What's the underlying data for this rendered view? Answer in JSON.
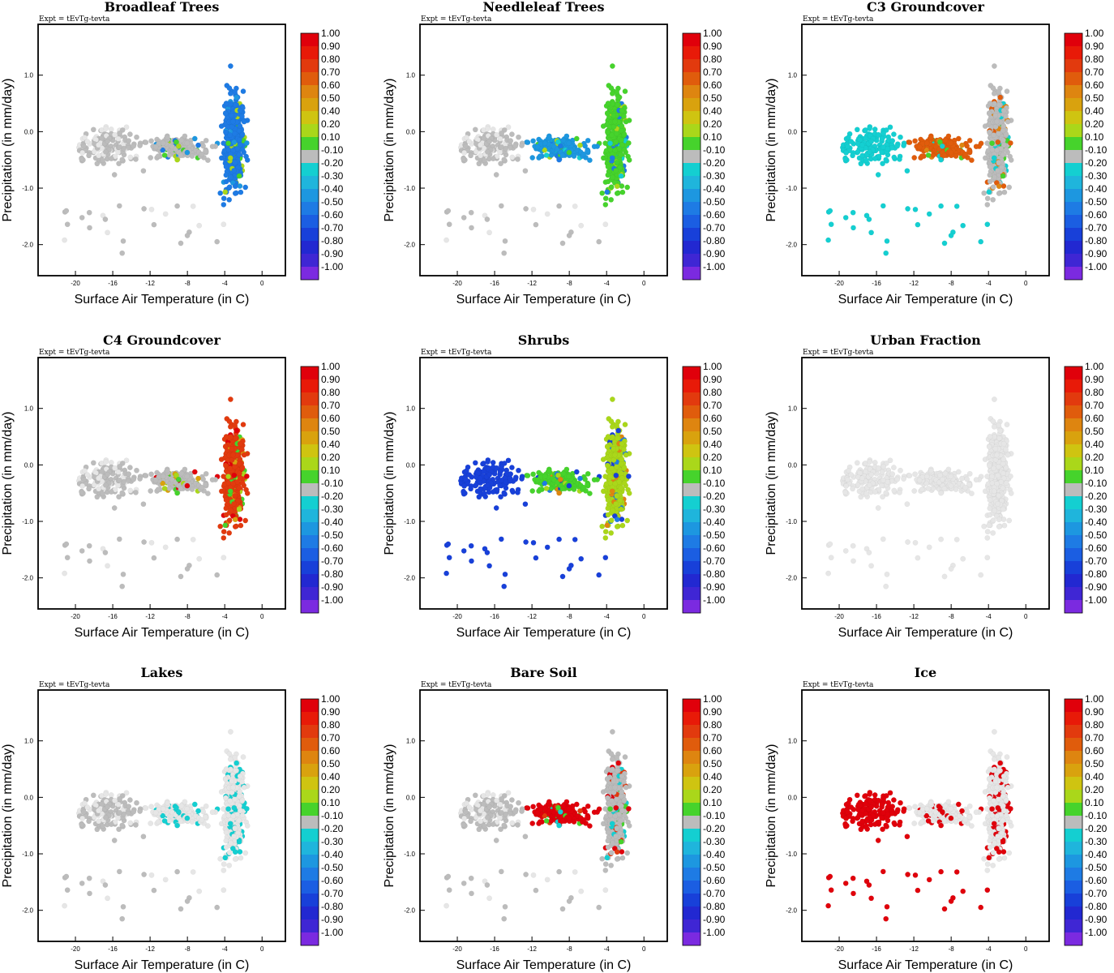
{
  "figure": {
    "expt_label": "Expt = tEvTg-tevta"
  },
  "colorbar": {
    "labels": [
      "1.00",
      "0.90",
      "0.80",
      "0.70",
      "0.60",
      "0.50",
      "0.40",
      "0.20",
      "0.10",
      "-0.10",
      "-0.20",
      "-0.30",
      "-0.40",
      "-0.50",
      "-0.60",
      "-0.70",
      "-0.80",
      "-0.90",
      "-1.00"
    ],
    "colors": [
      "#e0000b",
      "#e81a08",
      "#e23a0e",
      "#e05c0c",
      "#de8510",
      "#d9a20e",
      "#cfc411",
      "#aad71a",
      "#46d32c",
      "#bcbcbc",
      "#14cfd1",
      "#1fb5dc",
      "#1d97e0",
      "#1e7be4",
      "#1b5ee2",
      "#1840d9",
      "#2228d1",
      "#3f26d4",
      "#7b2ae0"
    ]
  },
  "chart_data": [
    {
      "type": "scatter",
      "title": "Broadleaf Trees",
      "xlabel": "Surface Air Temperature (in C)",
      "ylabel": "Precipitation (in mm/day)",
      "xlim": [
        -24,
        2.5
      ],
      "ylim": [
        -2.55,
        1.9
      ],
      "xticks": [
        "-20",
        "-16",
        "-12",
        "-8",
        "-4",
        "0"
      ],
      "yticks": [
        "1.0",
        "0.0",
        "-1.0",
        "-2.0"
      ],
      "color_map": {
        "tropics": "#1e7be4",
        "arid": "#bcbcbc",
        "cold": "#bcbcbc"
      },
      "highlight": [
        "#1d97e0",
        "#1e7be4",
        "#46d32c",
        "#aad71a"
      ]
    },
    {
      "type": "scatter",
      "title": "Needleleaf Trees",
      "xlabel": "Surface Air Temperature (in C)",
      "ylabel": "Precipitation (in mm/day)",
      "xlim": [
        -24,
        2.5
      ],
      "ylim": [
        -2.55,
        1.9
      ],
      "xticks": [
        "-20",
        "-16",
        "-12",
        "-8",
        "-4",
        "0"
      ],
      "yticks": [
        "1.0",
        "0.0",
        "-1.0",
        "-2.0"
      ],
      "color_map": {
        "tropics": "#46d32c",
        "arid": "#1d97e0",
        "cold": "#bcbcbc"
      },
      "highlight": [
        "#46d32c",
        "#aad71a",
        "#14cfd1",
        "#1e7be4"
      ]
    },
    {
      "type": "scatter",
      "title": "C3 Groundcover",
      "xlabel": "Surface Air Temperature (in C)",
      "ylabel": "Precipitation (in mm/day)",
      "xlim": [
        -24,
        2.5
      ],
      "ylim": [
        -2.55,
        1.9
      ],
      "xticks": [
        "-20",
        "-16",
        "-12",
        "-8",
        "-4",
        "0"
      ],
      "yticks": [
        "1.0",
        "0.0",
        "-1.0",
        "-2.0"
      ],
      "color_map": {
        "tropics": "#bcbcbc",
        "arid": "#e05c0c",
        "cold": "#14cfd1"
      },
      "highlight": [
        "#e05c0c",
        "#de8510",
        "#46d32c",
        "#14cfd1"
      ]
    },
    {
      "type": "scatter",
      "title": "C4 Groundcover",
      "xlabel": "Surface Air Temperature (in C)",
      "ylabel": "Precipitation (in mm/day)",
      "xlim": [
        -24,
        2.5
      ],
      "ylim": [
        -2.55,
        1.9
      ],
      "xticks": [
        "-20",
        "-16",
        "-12",
        "-8",
        "-4",
        "0"
      ],
      "yticks": [
        "1.0",
        "0.0",
        "-1.0",
        "-2.0"
      ],
      "color_map": {
        "tropics": "#e23a0e",
        "arid": "#bcbcbc",
        "cold": "#bcbcbc"
      },
      "highlight": [
        "#e0000b",
        "#d9a20e",
        "#aad71a",
        "#46d32c"
      ]
    },
    {
      "type": "scatter",
      "title": "Shrubs",
      "xlabel": "Surface Air Temperature (in C)",
      "ylabel": "Precipitation (in mm/day)",
      "xlim": [
        -24,
        2.5
      ],
      "ylim": [
        -2.55,
        1.9
      ],
      "xticks": [
        "-20",
        "-16",
        "-12",
        "-8",
        "-4",
        "0"
      ],
      "yticks": [
        "1.0",
        "0.0",
        "-1.0",
        "-2.0"
      ],
      "color_map": {
        "tropics": "#aad71a",
        "arid": "#46d32c",
        "cold": "#1840d9"
      },
      "highlight": [
        "#1840d9",
        "#1e7be4",
        "#aad71a",
        "#de8510"
      ]
    },
    {
      "type": "scatter",
      "title": "Urban Fraction",
      "xlabel": "Surface Air Temperature (in C)",
      "ylabel": "Precipitation (in mm/day)",
      "xlim": [
        -24,
        2.5
      ],
      "ylim": [
        -2.55,
        1.9
      ],
      "xticks": [
        "-20",
        "-16",
        "-12",
        "-8",
        "-4",
        "0"
      ],
      "yticks": [
        "1.0",
        "0.0",
        "-1.0",
        "-2.0"
      ],
      "color_map": {
        "tropics": "#e6e6e6",
        "arid": "#e6e6e6",
        "cold": "#e6e6e6"
      },
      "highlight": []
    },
    {
      "type": "scatter",
      "title": "Lakes",
      "xlabel": "Surface Air Temperature (in C)",
      "ylabel": "Precipitation (in mm/day)",
      "xlim": [
        -24,
        2.5
      ],
      "ylim": [
        -2.55,
        1.9
      ],
      "xticks": [
        "-20",
        "-16",
        "-12",
        "-8",
        "-4",
        "0"
      ],
      "yticks": [
        "1.0",
        "0.0",
        "-1.0",
        "-2.0"
      ],
      "color_map": {
        "tropics": "#e6e6e6",
        "arid": "#e6e6e6",
        "cold": "#bcbcbc"
      },
      "highlight": [
        "#14cfd1"
      ]
    },
    {
      "type": "scatter",
      "title": "Bare Soil",
      "xlabel": "Surface Air Temperature (in C)",
      "ylabel": "Precipitation (in mm/day)",
      "xlim": [
        -24,
        2.5
      ],
      "ylim": [
        -2.55,
        1.9
      ],
      "xticks": [
        "-20",
        "-16",
        "-12",
        "-8",
        "-4",
        "0"
      ],
      "yticks": [
        "1.0",
        "0.0",
        "-1.0",
        "-2.0"
      ],
      "color_map": {
        "tropics": "#bcbcbc",
        "arid": "#e0000b",
        "cold": "#bcbcbc"
      },
      "highlight": [
        "#e0000b",
        "#e23a0e",
        "#46d32c",
        "#14cfd1"
      ]
    },
    {
      "type": "scatter",
      "title": "Ice",
      "xlabel": "Surface Air Temperature (in C)",
      "ylabel": "Precipitation (in mm/day)",
      "xlim": [
        -24,
        2.5
      ],
      "ylim": [
        -2.55,
        1.9
      ],
      "xticks": [
        "-20",
        "-16",
        "-12",
        "-8",
        "-4",
        "0"
      ],
      "yticks": [
        "1.0",
        "0.0",
        "-1.0",
        "-2.0"
      ],
      "color_map": {
        "tropics": "#e6e6e6",
        "arid": "#e6e6e6",
        "cold": "#e0000b"
      },
      "highlight": [
        "#e0000b"
      ]
    }
  ]
}
